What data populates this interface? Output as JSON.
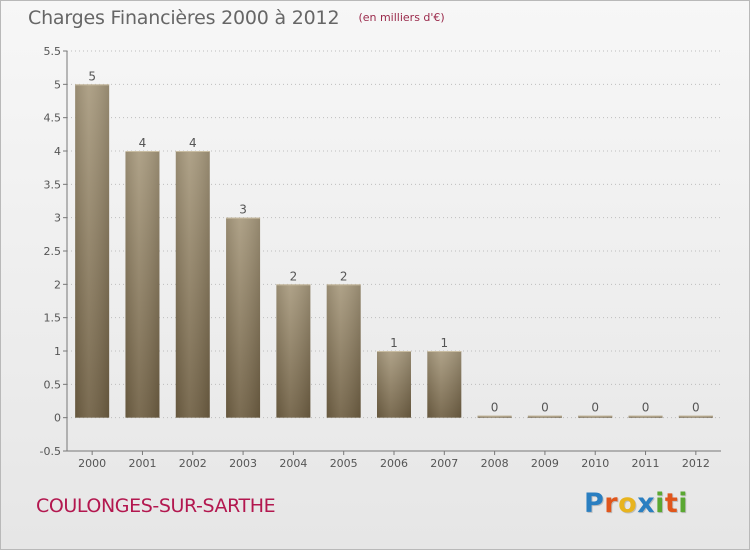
{
  "page": {
    "title": "Charges Financières 2000 à 2012",
    "unit": "(en milliers d'€)",
    "commune": "COULONGES-SUR-SARTHE",
    "brand": {
      "text": "Proxiti",
      "letters": [
        {
          "char": "P",
          "color": "#2a7fc1"
        },
        {
          "char": "r",
          "color": "#e0561c"
        },
        {
          "char": "o",
          "color": "#e8b41e"
        },
        {
          "char": "x",
          "color": "#2a7fc1"
        },
        {
          "char": "i",
          "color": "#5aa832"
        },
        {
          "char": "t",
          "color": "#e0561c"
        },
        {
          "char": "i",
          "color": "#5aa832"
        }
      ]
    }
  },
  "colors": {
    "bar_top": "#a89a7e",
    "bar_bottom": "#6f5f43",
    "bar_edge": "#c9bda2",
    "text": "#555555",
    "grid": "#bdbdbd",
    "title": "#666666",
    "commune": "#b3174f"
  },
  "chart_data": {
    "type": "bar",
    "categories": [
      "2000",
      "2001",
      "2002",
      "2003",
      "2004",
      "2005",
      "2006",
      "2007",
      "2008",
      "2009",
      "2010",
      "2011",
      "2012"
    ],
    "values": [
      5,
      4,
      4,
      3,
      2,
      2,
      1,
      1,
      0,
      0,
      0,
      0,
      0
    ],
    "data_labels": [
      "5",
      "4",
      "4",
      "3",
      "2",
      "2",
      "1",
      "1",
      "0",
      "0",
      "0",
      "0",
      "0"
    ],
    "title": "Charges Financières 2000 à 2012",
    "unit": "(en milliers d'€)",
    "ylim": [
      -0.5,
      5.5
    ],
    "yticks": [
      -0.5,
      0,
      0.5,
      1,
      1.5,
      2,
      2.5,
      3,
      3.5,
      4,
      4.5,
      5,
      5.5
    ],
    "ytick_labels": [
      "-0.5",
      "0",
      "0.5",
      "1",
      "1.5",
      "2",
      "2.5",
      "3",
      "3.5",
      "4",
      "4.5",
      "5",
      "5.5"
    ],
    "grid": true,
    "legend": "none"
  }
}
